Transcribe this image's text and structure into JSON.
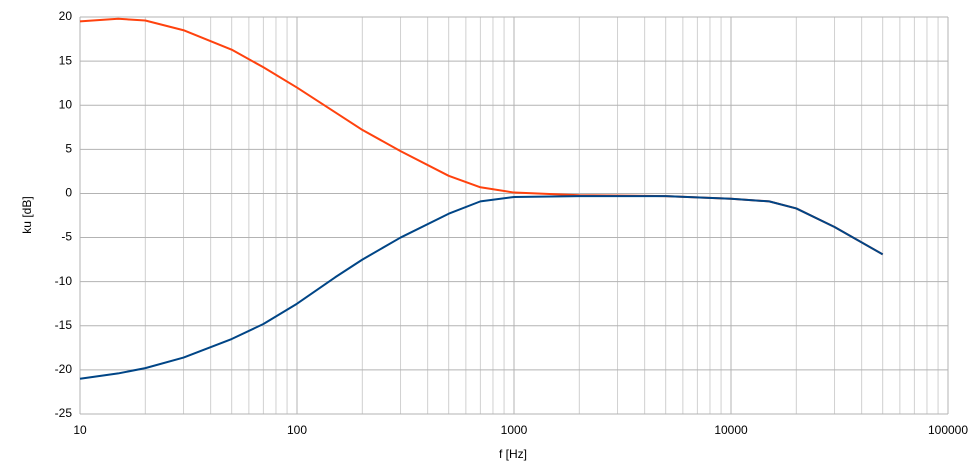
{
  "chart_data": {
    "type": "line",
    "xlabel": "f [Hz]",
    "ylabel": "ku [dB]",
    "x": [
      10,
      15,
      20,
      30,
      50,
      70,
      100,
      150,
      200,
      300,
      500,
      700,
      1000,
      2000,
      5000,
      10000,
      15000,
      20000,
      30000,
      50000
    ],
    "series": [
      {
        "color": "#ff420e",
        "values": [
          19.5,
          19.8,
          19.6,
          18.5,
          16.3,
          14.3,
          12,
          9.2,
          7.2,
          4.8,
          2,
          0.7,
          0.1,
          -0.2,
          -0.3,
          -0.6,
          -0.9,
          -1.7,
          -3.8,
          -6.9
        ]
      },
      {
        "color": "#004586",
        "values": [
          -21,
          -20.4,
          -19.8,
          -18.6,
          -16.5,
          -14.8,
          -12.5,
          -9.5,
          -7.5,
          -5,
          -2.3,
          -0.9,
          -0.4,
          -0.3,
          -0.3,
          -0.6,
          -0.9,
          -1.7,
          -3.8,
          -6.9
        ]
      }
    ],
    "xscale": "log",
    "xlim": [
      10,
      100000
    ],
    "xticks": [
      10,
      100,
      1000,
      10000,
      100000
    ],
    "ylim": [
      -25,
      20
    ],
    "yticks": [
      20,
      15,
      10,
      5,
      0,
      -5,
      -10,
      -15,
      -20,
      -25
    ],
    "grid": true
  }
}
